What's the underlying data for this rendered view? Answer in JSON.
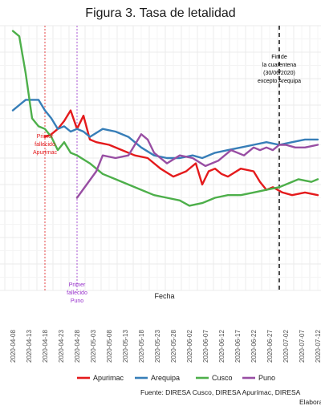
{
  "chart_data": {
    "type": "line",
    "title": "Figura 3. Tasa de letalidad",
    "xlabel": "Fecha",
    "ylabel": "",
    "grid": true,
    "legend_position": "bottom",
    "x_ticks": [
      "2020-04-08",
      "2020-04-13",
      "2020-04-18",
      "2020-04-23",
      "2020-04-28",
      "2020-05-03",
      "2020-05-08",
      "2020-05-13",
      "2020-05-18",
      "2020-05-23",
      "2020-05-28",
      "2020-06-02",
      "2020-06-07",
      "2020-06-12",
      "2020-06-17",
      "2020-06-22",
      "2020-06-27",
      "2020-07-02",
      "2020-07-07",
      "2020-07-12"
    ],
    "ylim": [
      0,
      10
    ],
    "series": [
      {
        "name": "Apurimac",
        "color": "#e41a1c",
        "x": [
          "2020-04-18",
          "2020-04-20",
          "2020-04-22",
          "2020-04-24",
          "2020-04-26",
          "2020-04-28",
          "2020-04-30",
          "2020-05-02",
          "2020-05-04",
          "2020-05-08",
          "2020-05-12",
          "2020-05-16",
          "2020-05-20",
          "2020-05-24",
          "2020-05-28",
          "2020-06-01",
          "2020-06-04",
          "2020-06-06",
          "2020-06-08",
          "2020-06-10",
          "2020-06-12",
          "2020-06-14",
          "2020-06-18",
          "2020-06-22",
          "2020-06-24",
          "2020-06-26",
          "2020-06-28",
          "2020-07-01",
          "2020-07-04",
          "2020-07-08",
          "2020-07-12"
        ],
        "values": [
          5.8,
          5.9,
          6.1,
          6.4,
          6.8,
          6.1,
          6.6,
          5.7,
          5.6,
          5.5,
          5.3,
          5.1,
          5.0,
          4.6,
          4.3,
          4.5,
          4.8,
          4.0,
          4.5,
          4.6,
          4.4,
          4.3,
          4.6,
          4.5,
          4.1,
          3.8,
          3.9,
          3.7,
          3.6,
          3.7,
          3.6
        ]
      },
      {
        "name": "Arequipa",
        "color": "#377eb8",
        "x": [
          "2020-04-08",
          "2020-04-12",
          "2020-04-16",
          "2020-04-18",
          "2020-04-20",
          "2020-04-22",
          "2020-04-24",
          "2020-04-26",
          "2020-04-28",
          "2020-04-30",
          "2020-05-02",
          "2020-05-06",
          "2020-05-10",
          "2020-05-14",
          "2020-05-18",
          "2020-05-22",
          "2020-05-26",
          "2020-05-30",
          "2020-06-03",
          "2020-06-06",
          "2020-06-10",
          "2020-06-14",
          "2020-06-18",
          "2020-06-22",
          "2020-06-26",
          "2020-06-30",
          "2020-07-04",
          "2020-07-08",
          "2020-07-12"
        ],
        "values": [
          6.8,
          7.2,
          7.2,
          6.8,
          6.5,
          6.1,
          6.2,
          6.0,
          6.1,
          6.0,
          5.8,
          6.1,
          6.0,
          5.8,
          5.4,
          5.1,
          5.0,
          5.0,
          5.1,
          5.0,
          5.2,
          5.3,
          5.4,
          5.5,
          5.6,
          5.5,
          5.6,
          5.7,
          5.7
        ]
      },
      {
        "name": "Cusco",
        "color": "#4daf4a",
        "x": [
          "2020-04-08",
          "2020-04-10",
          "2020-04-12",
          "2020-04-14",
          "2020-04-16",
          "2020-04-18",
          "2020-04-20",
          "2020-04-22",
          "2020-04-24",
          "2020-04-26",
          "2020-04-28",
          "2020-05-02",
          "2020-05-06",
          "2020-05-10",
          "2020-05-14",
          "2020-05-18",
          "2020-05-22",
          "2020-05-26",
          "2020-05-30",
          "2020-06-02",
          "2020-06-06",
          "2020-06-10",
          "2020-06-14",
          "2020-06-18",
          "2020-06-22",
          "2020-06-26",
          "2020-06-30",
          "2020-07-02",
          "2020-07-06",
          "2020-07-10",
          "2020-07-12"
        ],
        "values": [
          9.8,
          9.6,
          8.2,
          6.5,
          6.2,
          6.1,
          5.8,
          5.3,
          5.6,
          5.2,
          5.1,
          4.8,
          4.4,
          4.2,
          4.0,
          3.8,
          3.6,
          3.5,
          3.4,
          3.2,
          3.3,
          3.5,
          3.6,
          3.6,
          3.7,
          3.8,
          3.9,
          4.0,
          4.2,
          4.1,
          4.2
        ]
      },
      {
        "name": "Puno",
        "color": "#984ea3",
        "x": [
          "2020-04-28",
          "2020-05-01",
          "2020-05-04",
          "2020-05-06",
          "2020-05-10",
          "2020-05-14",
          "2020-05-18",
          "2020-05-20",
          "2020-05-22",
          "2020-05-26",
          "2020-05-30",
          "2020-06-03",
          "2020-06-07",
          "2020-06-11",
          "2020-06-15",
          "2020-06-19",
          "2020-06-22",
          "2020-06-24",
          "2020-06-26",
          "2020-06-28",
          "2020-06-30",
          "2020-07-02",
          "2020-07-05",
          "2020-07-08",
          "2020-07-12"
        ],
        "values": [
          3.5,
          4.0,
          4.5,
          5.1,
          5.0,
          5.1,
          5.9,
          5.7,
          5.2,
          4.8,
          5.1,
          5.0,
          4.7,
          4.9,
          5.3,
          5.1,
          5.4,
          5.3,
          5.4,
          5.3,
          5.5,
          5.5,
          5.4,
          5.4,
          5.5
        ]
      }
    ],
    "annotations": [
      {
        "date": "2020-04-18",
        "color": "#e41a1c",
        "text": [
          "Primer",
          "fallecido",
          "Apurímac"
        ]
      },
      {
        "date": "2020-04-28",
        "color": "#9933cc",
        "text": [
          "Primer",
          "fallecido",
          "Puno"
        ]
      },
      {
        "date": "2020-06-30",
        "color": "#000000",
        "text": [
          "Fin de",
          "la cuarentena",
          "(30/06/2020)",
          "excepto Arequipa"
        ]
      }
    ]
  },
  "source_line": "Fuente: DIRESA Cusco, DIRESA Apurímac, DIRESA",
  "credit_line": "Elabora"
}
